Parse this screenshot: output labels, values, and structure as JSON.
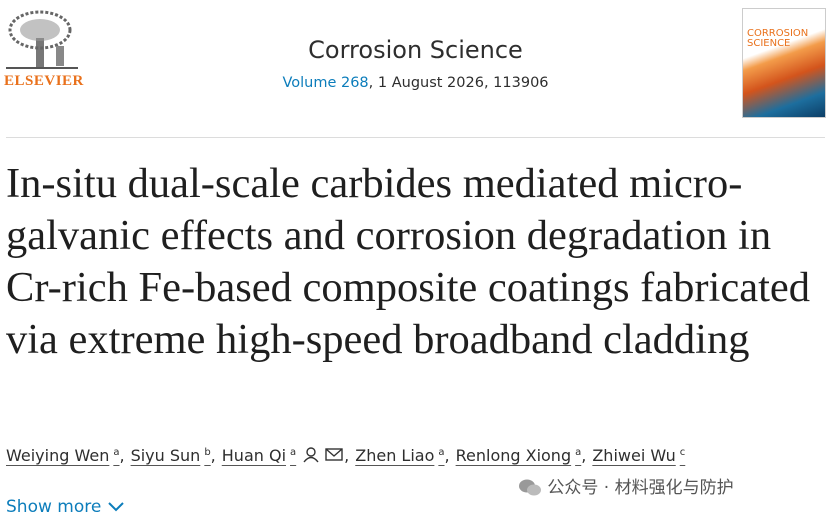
{
  "header": {
    "publisher": "ELSEVIER",
    "journal": "Corrosion Science",
    "volume": "Volume 268",
    "issue_info": ", 1 August 2026, 113906",
    "cover_title": [
      "CORROSION",
      "SCIENCE"
    ]
  },
  "article": {
    "title": "In-situ dual-scale carbides mediated micro-galvanic effects and corrosion degradation in Cr-rich Fe-based composite coatings fabricated via extreme high-speed broadband cladding",
    "author_separator": ",",
    "authors": [
      {
        "name": "Weiying Wen",
        "affil": "a"
      },
      {
        "name": "Siyu Sun",
        "affil": "b"
      },
      {
        "name": "Huan Qi",
        "affil": "a"
      },
      {
        "name": "Zhen Liao",
        "affil": "a"
      },
      {
        "name": "Renlong Xiong",
        "affil": "a"
      },
      {
        "name": "Zhiwei Wu",
        "affil": "c"
      }
    ],
    "show_more": "Show more"
  },
  "watermark": "公众号 · 材料强化与防护"
}
